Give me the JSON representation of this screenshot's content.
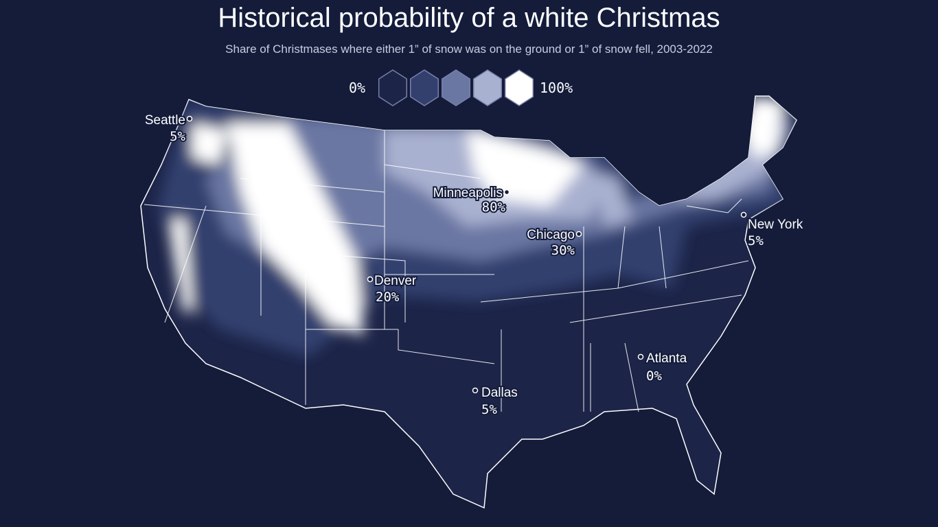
{
  "title": "Historical probability of a white Christmas",
  "subtitle": "Share of Christmases where either 1” of snow was on the ground or 1” of snow fell, 2003-2022",
  "legend": {
    "min_label": "0%",
    "max_label": "100%",
    "colors": [
      "#1c2448",
      "#33406e",
      "#6a77a3",
      "#a9b1d0",
      "#ffffff"
    ]
  },
  "background": "#141c3a",
  "cities": [
    {
      "name": "Seattle",
      "value": "5%"
    },
    {
      "name": "Minneapolis",
      "value": "80%"
    },
    {
      "name": "Chicago",
      "value": "30%"
    },
    {
      "name": "New York",
      "value": "5%"
    },
    {
      "name": "Denver",
      "value": "20%"
    },
    {
      "name": "Atlanta",
      "value": "0%"
    },
    {
      "name": "Dallas",
      "value": "5%"
    }
  ]
}
